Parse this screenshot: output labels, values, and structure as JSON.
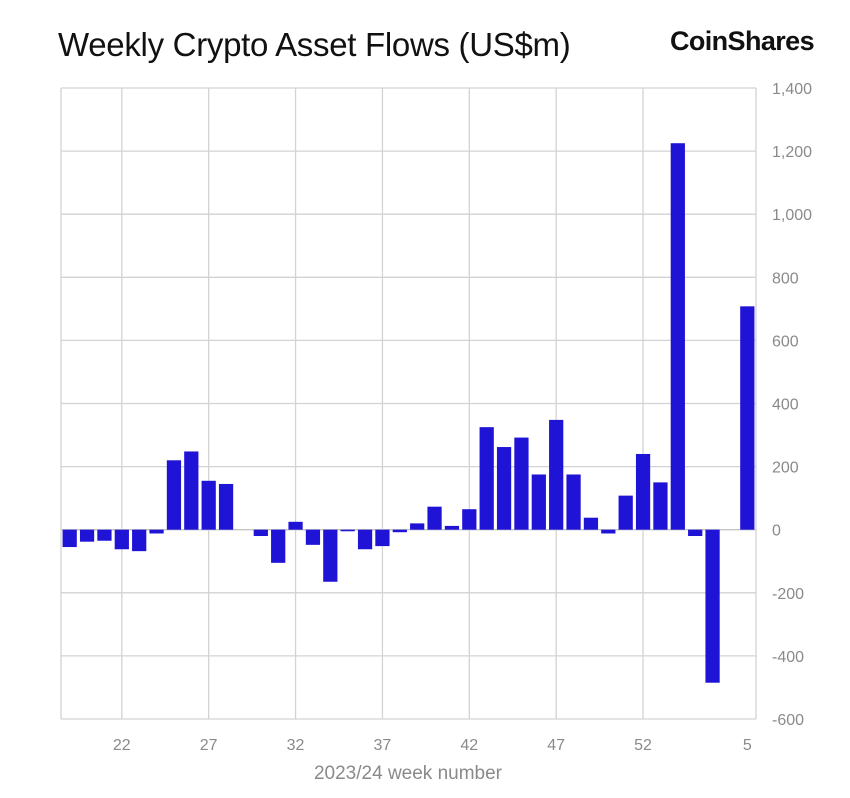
{
  "title": "Weekly Crypto Asset Flows (US$m)",
  "brand": "CoinShares",
  "chart_data": {
    "type": "bar",
    "title": "Weekly Crypto Asset Flows (US$m)",
    "xlabel": "2023/24 week number",
    "ylabel": "",
    "ylim": [
      -600,
      1400
    ],
    "yticks": [
      -600,
      -400,
      -200,
      0,
      200,
      400,
      600,
      800,
      1000,
      1200,
      1400
    ],
    "ytick_labels": [
      "-600",
      "-400",
      "-200",
      "0",
      "200",
      "400",
      "600",
      "800",
      "1,000",
      "1,200",
      "1,400"
    ],
    "y_axis_position": "right",
    "grid": true,
    "bar_color": "#1f14d6",
    "categories": [
      19,
      20,
      21,
      22,
      23,
      24,
      25,
      26,
      27,
      28,
      29,
      30,
      31,
      32,
      33,
      34,
      35,
      36,
      37,
      38,
      39,
      40,
      41,
      42,
      43,
      44,
      45,
      46,
      47,
      48,
      49,
      50,
      51,
      52,
      53,
      1,
      2,
      3,
      4,
      5
    ],
    "xtick_labels": [
      {
        "category_index": 3,
        "label": "22"
      },
      {
        "category_index": 8,
        "label": "27"
      },
      {
        "category_index": 13,
        "label": "32"
      },
      {
        "category_index": 18,
        "label": "37"
      },
      {
        "category_index": 23,
        "label": "42"
      },
      {
        "category_index": 28,
        "label": "47"
      },
      {
        "category_index": 33,
        "label": "52"
      },
      {
        "category_index": 39,
        "label": "5"
      }
    ],
    "values": [
      -55,
      -38,
      -35,
      -62,
      -68,
      -12,
      220,
      248,
      155,
      145,
      0,
      -20,
      -105,
      25,
      -48,
      -165,
      -5,
      -62,
      -52,
      -8,
      20,
      73,
      12,
      65,
      325,
      262,
      292,
      175,
      348,
      175,
      38,
      -12,
      108,
      240,
      150,
      1225,
      -20,
      -485,
      0,
      708
    ]
  }
}
